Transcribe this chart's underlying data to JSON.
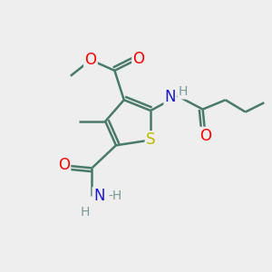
{
  "bg_color": "#eeeeee",
  "bond_color": "#4a7a6a",
  "bond_width": 1.8,
  "atom_colors": {
    "O": "#ff0000",
    "N": "#1a1acc",
    "S": "#bbbb00",
    "C": "#4a7a6a",
    "H": "#7a9a9a"
  }
}
